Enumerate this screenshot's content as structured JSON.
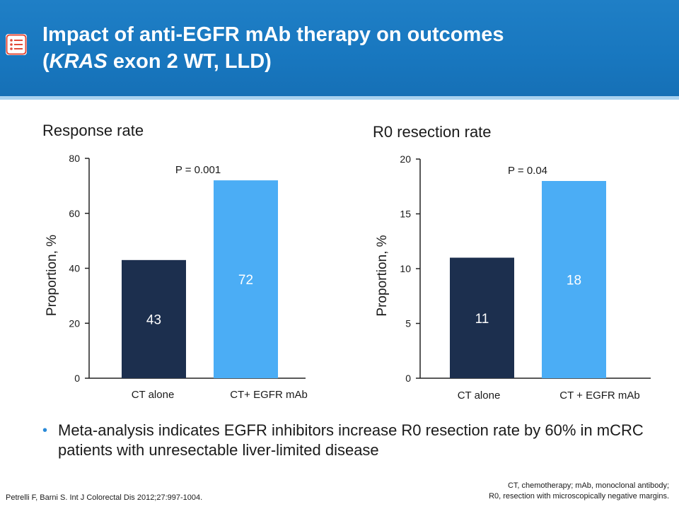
{
  "header": {
    "title_line1": "Impact of anti-EGFR mAb therapy on outcomes",
    "title_line2_pre": "(",
    "title_line2_italic": "KRAS",
    "title_line2_post": " exon 2 WT, LLD)"
  },
  "colors": {
    "header_bg": "#1877bf",
    "bar_ct_alone": "#1c2f4e",
    "bar_ct_egfr": "#4badf5",
    "bullet": "#2a8ad8"
  },
  "chart_data": [
    {
      "type": "bar",
      "title": "Response rate",
      "categories": [
        "CT alone",
        "CT+ EGFR mAb"
      ],
      "values": [
        43,
        72
      ],
      "data_labels": [
        "43",
        "72"
      ],
      "ylabel": "Proportion, %",
      "ylim": [
        0,
        80
      ],
      "yticks": [
        0,
        20,
        40,
        60,
        80
      ],
      "annotation": "P = 0.001",
      "grid": false
    },
    {
      "type": "bar",
      "title": "R0 resection rate",
      "categories": [
        "CT alone",
        "CT + EGFR mAb"
      ],
      "values": [
        11,
        18
      ],
      "data_labels": [
        "11",
        "18"
      ],
      "ylabel": "Proportion, %",
      "ylim": [
        0,
        20
      ],
      "yticks": [
        0,
        5,
        10,
        15,
        20
      ],
      "annotation": "P = 0.04",
      "grid": false
    }
  ],
  "bullet": {
    "symbol": "•",
    "text": "Meta-analysis indicates EGFR inhibitors increase R0 resection rate by 60% in mCRC patients with unresectable liver-limited disease"
  },
  "footer": {
    "reference": "Petrelli F, Barni S. Int J Colorectal Dis 2012;27:997-1004.",
    "abbreviations_line1": "CT, chemotherapy; mAb, monoclonal antibody;",
    "abbreviations_line2": "R0, resection with microscopically negative margins."
  }
}
